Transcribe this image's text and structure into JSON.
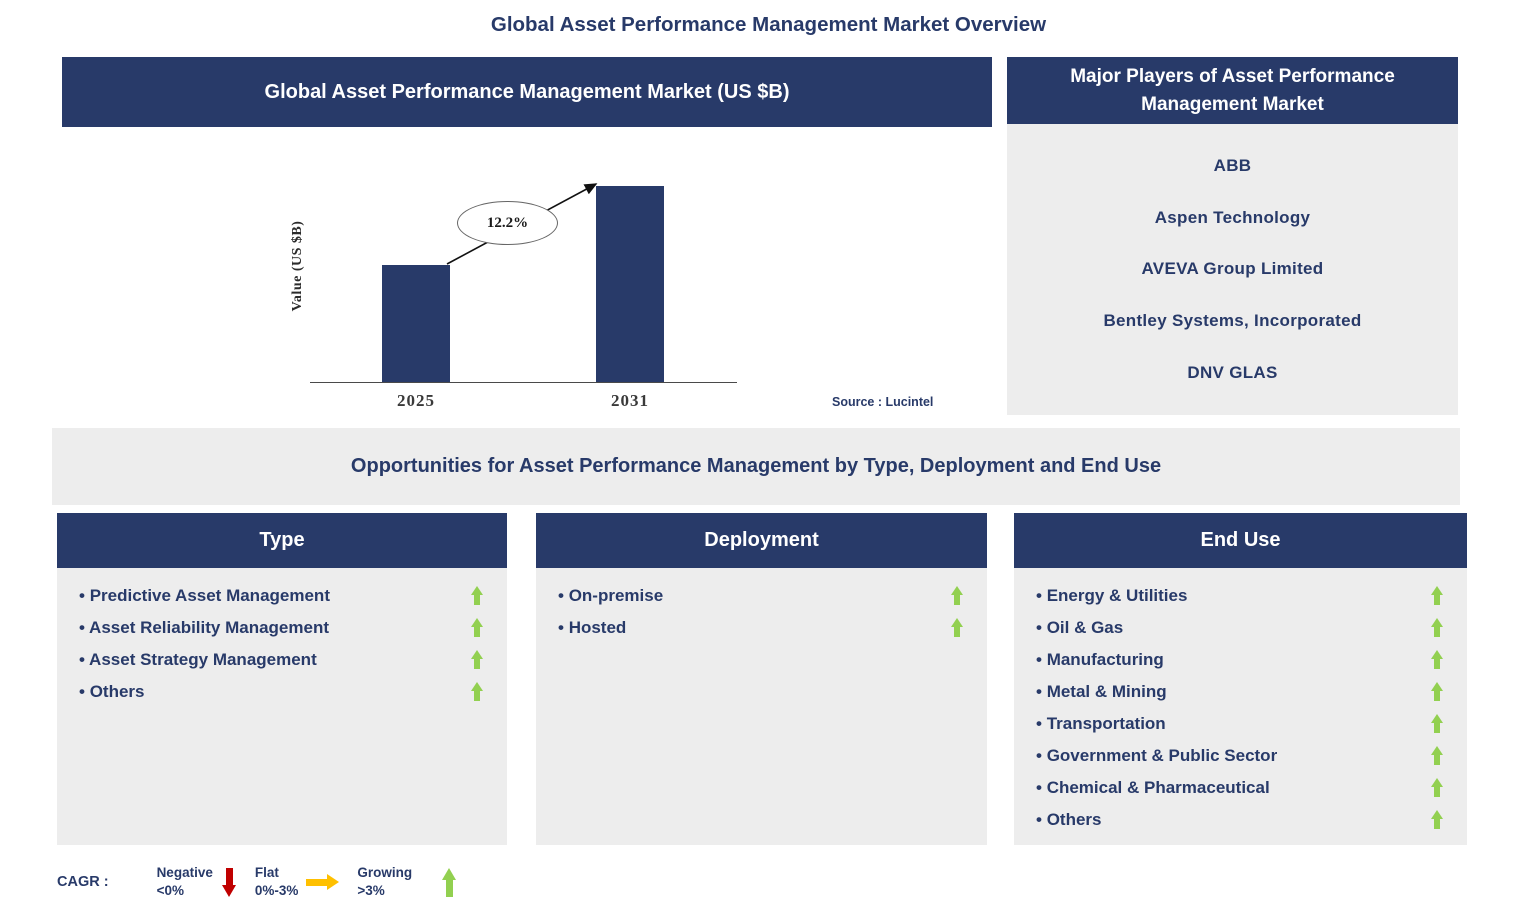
{
  "page": {
    "title": "Global Asset Performance Management Market Overview"
  },
  "chart_panel": {
    "source": "Source : Lucintel"
  },
  "chart_data": {
    "type": "bar",
    "title": "Global Asset Performance Management Market (US $B)",
    "xlabel": "",
    "ylabel": "Value (US $B)",
    "categories": [
      "2025",
      "2031"
    ],
    "values": [
      3,
      5
    ],
    "ylim": [
      0,
      6
    ],
    "values_estimated": true,
    "annotations": [
      "12.2%"
    ],
    "legend_position": "none",
    "grid": false,
    "bar_color": "#283A69"
  },
  "players_panel": {
    "header": "Major Players of Asset Performance Management Market",
    "players": [
      "ABB",
      "Aspen Technology",
      "AVEVA Group Limited",
      "Bentley Systems, Incorporated",
      "DNV GLAS"
    ]
  },
  "opportunities": {
    "title": "Opportunities for Asset Performance Management by Type, Deployment and End Use"
  },
  "columns": [
    {
      "header": "Type",
      "items": [
        "Predictive Asset Management",
        "Asset Reliability Management",
        "Asset Strategy Management",
        "Others"
      ]
    },
    {
      "header": "Deployment",
      "items": [
        "On-premise",
        "Hosted"
      ]
    },
    {
      "header": "End Use",
      "items": [
        "Energy & Utilities",
        "Oil & Gas",
        "Manufacturing",
        "Metal & Mining",
        "Transportation",
        "Government & Public Sector",
        "Chemical & Pharmaceutical",
        "Others"
      ]
    }
  ],
  "legend": {
    "label": "CAGR :",
    "items": [
      {
        "name": "Negative",
        "range": "<0%",
        "trend": "down"
      },
      {
        "name": "Flat",
        "range": "0%-3%",
        "trend": "flat"
      },
      {
        "name": "Growing",
        "range": ">3%",
        "trend": "up"
      }
    ]
  },
  "colors": {
    "navy": "#283A69",
    "panel_gray": "#EDEDED",
    "green": "#92D050",
    "red": "#C00000",
    "amber": "#FFC000"
  }
}
